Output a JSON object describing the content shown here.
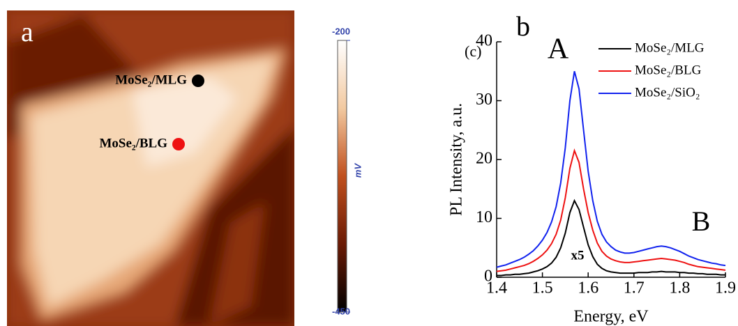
{
  "chart_data": [
    {
      "type": "image",
      "panel_label": "a",
      "annotations": [
        {
          "text": "MoSe₂/MLG",
          "color": "#000000"
        },
        {
          "text": "MoSe₂/BLG",
          "color": "#ee1111"
        }
      ],
      "colorbar": {
        "lim": [
          -450,
          -200
        ],
        "ticks": [
          -200,
          -450
        ],
        "label": "mV"
      }
    },
    {
      "type": "line",
      "panel_label": "b",
      "subtitle": "(c)",
      "annotations": [
        "A",
        "B",
        "x5"
      ],
      "xlabel": "Energy, eV",
      "ylabel": "PL Intensity, a.u.",
      "xlim": [
        1.4,
        1.9
      ],
      "ylim": [
        0,
        40
      ],
      "xticks": [
        1.4,
        1.5,
        1.6,
        1.7,
        1.8,
        1.9
      ],
      "yticks": [
        0,
        10,
        20,
        30,
        40
      ],
      "x": [
        1.4,
        1.41,
        1.42,
        1.43,
        1.44,
        1.45,
        1.46,
        1.47,
        1.48,
        1.49,
        1.5,
        1.51,
        1.52,
        1.53,
        1.54,
        1.55,
        1.56,
        1.57,
        1.58,
        1.59,
        1.6,
        1.61,
        1.62,
        1.63,
        1.64,
        1.65,
        1.66,
        1.67,
        1.68,
        1.69,
        1.7,
        1.71,
        1.72,
        1.73,
        1.74,
        1.75,
        1.76,
        1.77,
        1.78,
        1.79,
        1.8,
        1.81,
        1.82,
        1.83,
        1.84,
        1.85,
        1.86,
        1.87,
        1.88,
        1.89,
        1.9
      ],
      "series": [
        {
          "name": "MoSe₂/MLG",
          "color": "#000000",
          "values": [
            0.3,
            0.3,
            0.4,
            0.4,
            0.5,
            0.5,
            0.6,
            0.7,
            0.9,
            1.1,
            1.4,
            1.8,
            2.4,
            3.4,
            5,
            7.5,
            11,
            13,
            11.5,
            8.5,
            5.5,
            3.5,
            2.2,
            1.5,
            1.1,
            0.9,
            0.8,
            0.7,
            0.7,
            0.7,
            0.7,
            0.8,
            0.8,
            0.8,
            0.9,
            0.9,
            1.0,
            0.9,
            0.9,
            0.9,
            0.8,
            0.8,
            0.7,
            0.7,
            0.6,
            0.6,
            0.5,
            0.5,
            0.5,
            0.4,
            0.4
          ]
        },
        {
          "name": "MoSe₂/BLG",
          "color": "#ee1111",
          "values": [
            1.0,
            1.1,
            1.2,
            1.4,
            1.6,
            1.8,
            2.0,
            2.3,
            2.7,
            3.2,
            3.8,
            4.6,
            5.7,
            7.3,
            9.7,
            13.5,
            18.5,
            21.5,
            19.5,
            15,
            11,
            8,
            5.8,
            4.4,
            3.6,
            3.1,
            2.8,
            2.6,
            2.5,
            2.5,
            2.6,
            2.7,
            2.8,
            2.9,
            3.0,
            3.1,
            3.2,
            3.1,
            3.0,
            2.9,
            2.7,
            2.5,
            2.2,
            2.0,
            1.8,
            1.7,
            1.6,
            1.5,
            1.4,
            1.3,
            1.2
          ]
        },
        {
          "name": "MoSe₂/SiO₂",
          "color": "#1122ee",
          "values": [
            1.7,
            1.9,
            2.1,
            2.4,
            2.7,
            3.0,
            3.4,
            3.9,
            4.5,
            5.3,
            6.3,
            7.6,
            9.4,
            12,
            16,
            22,
            30,
            35,
            32,
            25,
            18,
            13,
            9.5,
            7.3,
            6,
            5.2,
            4.6,
            4.3,
            4.1,
            4.1,
            4.2,
            4.4,
            4.6,
            4.8,
            5,
            5.2,
            5.3,
            5.2,
            5,
            4.7,
            4.4,
            4,
            3.6,
            3.3,
            3,
            2.8,
            2.6,
            2.4,
            2.3,
            2.1,
            2.0
          ]
        }
      ]
    }
  ]
}
